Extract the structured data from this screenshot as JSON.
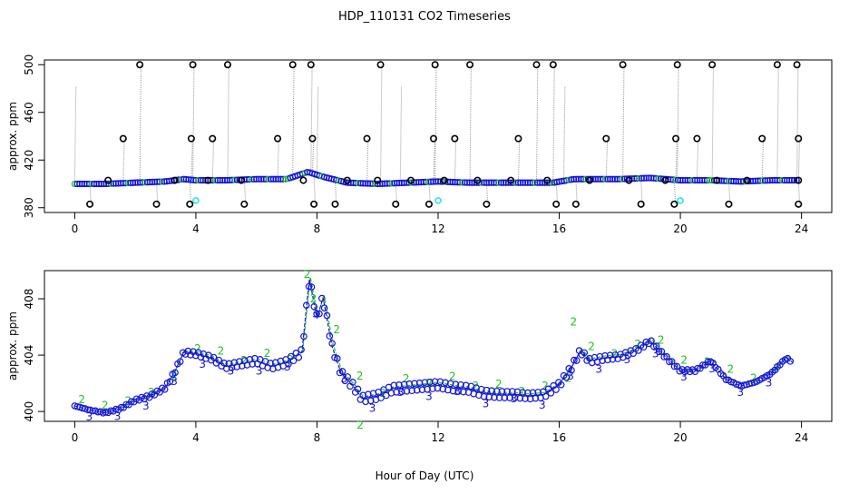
{
  "chart_data": {
    "title": "HDP_110131  CO2 Timeseries",
    "xlabel": "Hour of Day (UTC)",
    "panels": [
      {
        "type": "scatter",
        "ylabel": "approx. ppm",
        "xlim": [
          -1,
          25
        ],
        "ylim": [
          376,
          504
        ],
        "xticks": [
          "0",
          "4",
          "8",
          "12",
          "16",
          "20",
          "24"
        ],
        "yticks": [
          "380",
          "420",
          "460",
          "500"
        ],
        "ytick_values": [
          380,
          420,
          460,
          500
        ],
        "colors": {
          "main": "#1515d8",
          "fill": "#20c020",
          "outlier": "#000000",
          "spike": "#999999",
          "cyan": "#30e0e0"
        },
        "baseline_segments": [
          [
            0,
            400
          ],
          [
            1,
            400
          ],
          [
            2,
            401
          ],
          [
            3,
            402
          ],
          [
            3.6,
            404
          ],
          [
            4,
            403
          ],
          [
            5,
            403
          ],
          [
            6,
            404
          ],
          [
            7,
            404
          ],
          [
            7.7,
            410
          ],
          [
            8.2,
            406
          ],
          [
            9,
            401
          ],
          [
            10,
            400
          ],
          [
            11,
            401
          ],
          [
            12,
            402
          ],
          [
            13,
            401
          ],
          [
            14,
            401
          ],
          [
            15,
            401
          ],
          [
            15.8,
            401
          ],
          [
            16.5,
            404
          ],
          [
            17,
            404
          ],
          [
            18,
            404
          ],
          [
            19,
            405
          ],
          [
            20,
            403
          ],
          [
            21,
            403
          ],
          [
            22,
            402
          ],
          [
            23,
            403
          ],
          [
            23.8,
            403
          ]
        ],
        "outliers_high": [
          2.15,
          3.9,
          5.05,
          7.2,
          7.8,
          10.1,
          11.9,
          13.05,
          15.25,
          15.8,
          18.1,
          19.9,
          21.05,
          23.2,
          23.85
        ],
        "outliers_mid": [
          1.6,
          3.85,
          4.55,
          6.7,
          7.85,
          9.65,
          11.85,
          12.55,
          14.65,
          17.55,
          19.85,
          20.55,
          22.7,
          23.9
        ],
        "outliers_low": [
          0.5,
          2.7,
          3.8,
          5.6,
          7.9,
          8.6,
          10.6,
          11.7,
          13.6,
          15.9,
          16.55,
          18.7,
          19.8,
          21.6,
          23.9
        ],
        "outliers_near": [
          1.1,
          3.3,
          4.4,
          5.5,
          7.55,
          9,
          10,
          11.1,
          12.2,
          13.3,
          14.4,
          15.6,
          17,
          18.3,
          19.5,
          21.2,
          22.2,
          23.9
        ],
        "cyan_points": [
          4.0,
          12.0,
          20.0
        ],
        "thin_spikes": [
          0.0,
          8.0,
          10.75,
          16.15
        ]
      },
      {
        "type": "line",
        "ylabel": "approx. ppm",
        "xlim": [
          -1,
          25
        ],
        "ylim": [
          399.3,
          410
        ],
        "xticks": [
          "0",
          "4",
          "8",
          "12",
          "16",
          "20",
          "24"
        ],
        "yticks": [
          "400",
          "404",
          "408"
        ],
        "ytick_values": [
          400,
          404,
          408
        ],
        "series_labels": [
          "2",
          "3"
        ],
        "colors": {
          "line2": "#20c020",
          "line3": "#1515d8",
          "circle": "#1515d8"
        },
        "trend": [
          [
            0,
            400.4
          ],
          [
            0.5,
            400.1
          ],
          [
            1,
            399.9
          ],
          [
            1.5,
            400.2
          ],
          [
            2,
            400.8
          ],
          [
            2.5,
            401.1
          ],
          [
            3,
            401.7
          ],
          [
            3.3,
            402.8
          ],
          [
            3.6,
            404.2
          ],
          [
            4,
            404.1
          ],
          [
            4.5,
            403.8
          ],
          [
            5,
            403.2
          ],
          [
            5.5,
            403.4
          ],
          [
            6,
            403.6
          ],
          [
            6.5,
            403.2
          ],
          [
            7,
            403.5
          ],
          [
            7.5,
            404.2
          ],
          [
            7.75,
            409.4
          ],
          [
            8,
            406.6
          ],
          [
            8.2,
            408.1
          ],
          [
            8.5,
            404.6
          ],
          [
            8.8,
            402.7
          ],
          [
            9.2,
            401.8
          ],
          [
            9.5,
            400.9
          ],
          [
            10,
            401.1
          ],
          [
            10.5,
            401.6
          ],
          [
            11,
            401.7
          ],
          [
            11.5,
            401.8
          ],
          [
            12,
            401.9
          ],
          [
            12.5,
            401.7
          ],
          [
            13,
            401.6
          ],
          [
            13.5,
            401.3
          ],
          [
            14,
            401.2
          ],
          [
            14.5,
            401.2
          ],
          [
            15,
            401.1
          ],
          [
            15.5,
            401.2
          ],
          [
            16,
            401.9
          ],
          [
            16.4,
            403.1
          ],
          [
            16.7,
            404.3
          ],
          [
            17,
            403.6
          ],
          [
            17.5,
            403.8
          ],
          [
            18,
            403.9
          ],
          [
            18.5,
            404.3
          ],
          [
            19,
            405.0
          ],
          [
            19.5,
            403.9
          ],
          [
            20,
            402.9
          ],
          [
            20.5,
            402.9
          ],
          [
            21,
            403.6
          ],
          [
            21.5,
            402.3
          ],
          [
            22,
            401.8
          ],
          [
            22.5,
            402.1
          ],
          [
            23,
            402.7
          ],
          [
            23.5,
            403.8
          ],
          [
            23.7,
            403.5
          ]
        ],
        "spikes_green": [
          [
            7.65,
            410
          ],
          [
            16.45,
            406.6
          ],
          [
            9.4,
            399.3
          ]
        ]
      }
    ]
  }
}
